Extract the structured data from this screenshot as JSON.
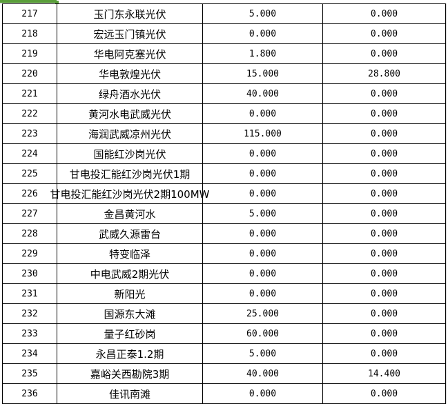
{
  "rows": [
    {
      "no": "217",
      "name": "玉门东永联光伏",
      "v1": "5.000",
      "v2": "0.000"
    },
    {
      "no": "218",
      "name": "宏远玉门镇光伏",
      "v1": "0.000",
      "v2": "0.000"
    },
    {
      "no": "219",
      "name": "华电阿克塞光伏",
      "v1": "1.800",
      "v2": "0.000"
    },
    {
      "no": "220",
      "name": "华电敦煌光伏",
      "v1": "15.000",
      "v2": "28.800"
    },
    {
      "no": "221",
      "name": "绿舟酒水光伏",
      "v1": "40.000",
      "v2": "0.000"
    },
    {
      "no": "222",
      "name": "黄河水电武威光伏",
      "v1": "0.000",
      "v2": "0.000"
    },
    {
      "no": "223",
      "name": "海润武威凉州光伏",
      "v1": "115.000",
      "v2": "0.000"
    },
    {
      "no": "224",
      "name": "国能红沙岗光伏",
      "v1": "0.000",
      "v2": "0.000"
    },
    {
      "no": "225",
      "name": "甘电投汇能红沙岗光伏1期",
      "v1": "0.000",
      "v2": "0.000"
    },
    {
      "no": "226",
      "name": "甘电投汇能红沙岗光伏2期100MW",
      "v1": "0.000",
      "v2": "0.000"
    },
    {
      "no": "227",
      "name": "金昌黄河水",
      "v1": "5.000",
      "v2": "0.000"
    },
    {
      "no": "228",
      "name": "武威久源雷台",
      "v1": "0.000",
      "v2": "0.000"
    },
    {
      "no": "229",
      "name": "特变临泽",
      "v1": "0.000",
      "v2": "0.000"
    },
    {
      "no": "230",
      "name": "中电武威2期光伏",
      "v1": "0.000",
      "v2": "0.000"
    },
    {
      "no": "231",
      "name": "新阳光",
      "v1": "0.000",
      "v2": "0.000"
    },
    {
      "no": "232",
      "name": "国源东大滩",
      "v1": "25.000",
      "v2": "0.000"
    },
    {
      "no": "233",
      "name": "量子红砂岗",
      "v1": "60.000",
      "v2": "0.000"
    },
    {
      "no": "234",
      "name": "永昌正泰1.2期",
      "v1": "5.000",
      "v2": "0.000"
    },
    {
      "no": "235",
      "name": "嘉峪关西勘院3期",
      "v1": "40.000",
      "v2": "14.400"
    },
    {
      "no": "236",
      "name": "佳讯南滩",
      "v1": "0.000",
      "v2": "0.000"
    }
  ]
}
